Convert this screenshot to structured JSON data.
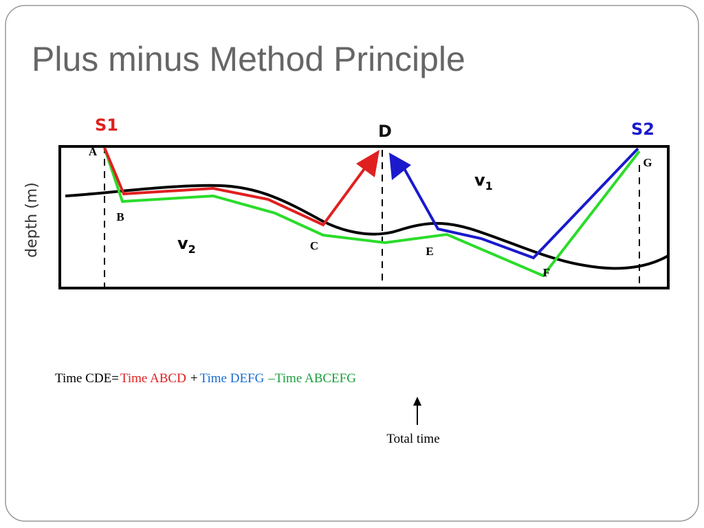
{
  "title": "Plus minus Method Principle",
  "diagram": {
    "y_axis_label": "depth (m)",
    "stations": {
      "s1": "S1",
      "d": "D",
      "s2": "S2"
    },
    "points": {
      "a": "A",
      "b": "B",
      "c": "C",
      "e": "E",
      "f": "F",
      "g": "G"
    },
    "layers": [
      {
        "symbol": "v",
        "subscript": "1"
      },
      {
        "symbol": "v",
        "subscript": "2"
      }
    ]
  },
  "equation": {
    "lhs": "Time CDE=",
    "term1": "Time ABCD",
    "op1": "+",
    "term2": "Time DEFG",
    "op2": "–",
    "term3": "Time ABCEFG"
  },
  "annotation": "Total time"
}
